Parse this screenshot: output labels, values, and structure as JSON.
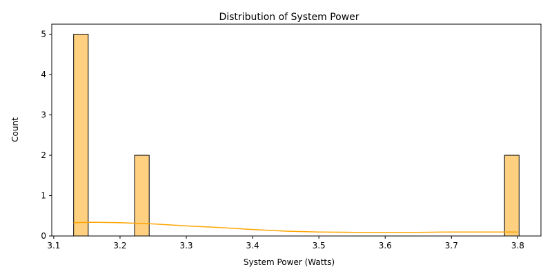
{
  "chart_data": {
    "type": "bar",
    "title": "Distribution of System Power",
    "xlabel": "System Power (Watts)",
    "ylabel": "Count",
    "xlim": [
      3.097,
      3.835
    ],
    "ylim": [
      0,
      5.25
    ],
    "bins": [
      {
        "x0": 3.13,
        "x1": 3.152,
        "count": 5
      },
      {
        "x0": 3.222,
        "x1": 3.244,
        "count": 2
      },
      {
        "x0": 3.78,
        "x1": 3.802,
        "count": 2
      }
    ],
    "kde": {
      "x": [
        3.13,
        3.16,
        3.2,
        3.25,
        3.3,
        3.35,
        3.4,
        3.45,
        3.5,
        3.55,
        3.6,
        3.65,
        3.7,
        3.75,
        3.8
      ],
      "y": [
        0.33,
        0.34,
        0.33,
        0.3,
        0.25,
        0.21,
        0.16,
        0.12,
        0.1,
        0.09,
        0.09,
        0.09,
        0.1,
        0.1,
        0.1
      ]
    },
    "xticks": [
      "3.1",
      "3.2",
      "3.3",
      "3.4",
      "3.5",
      "3.6",
      "3.7",
      "3.8"
    ],
    "xtick_values": [
      3.1,
      3.2,
      3.3,
      3.4,
      3.5,
      3.6,
      3.7,
      3.8
    ],
    "yticks": [
      "0",
      "1",
      "2",
      "3",
      "4",
      "5"
    ],
    "ytick_values": [
      0,
      1,
      2,
      3,
      4,
      5
    ],
    "grid": false,
    "colors": {
      "bar_fill": "#ffd080",
      "bar_edge": "#000000",
      "kde_line": "#ffa500"
    }
  }
}
